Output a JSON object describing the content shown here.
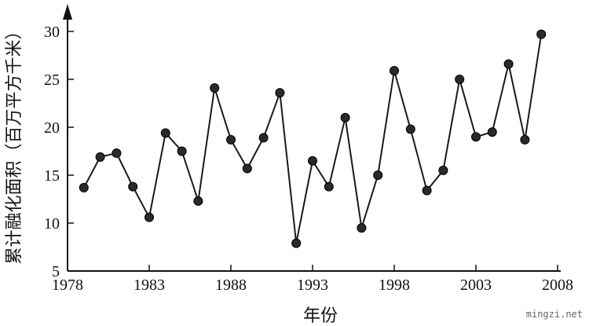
{
  "watermark": "mingzi.net",
  "chart_data": {
    "type": "line",
    "title": "",
    "xlabel": "年份",
    "ylabel": "累计融化面积（百万平方千米）",
    "x": [
      1979,
      1980,
      1981,
      1982,
      1983,
      1984,
      1985,
      1986,
      1987,
      1988,
      1989,
      1990,
      1991,
      1992,
      1993,
      1994,
      1995,
      1996,
      1997,
      1998,
      1999,
      2000,
      2001,
      2002,
      2003,
      2004,
      2005,
      2006,
      2007
    ],
    "series": [
      {
        "values": [
          13.7,
          16.9,
          17.3,
          13.8,
          10.6,
          19.4,
          17.5,
          12.3,
          24.1,
          18.7,
          15.7,
          18.9,
          23.6,
          7.9,
          16.5,
          13.8,
          21.0,
          9.5,
          15.0,
          25.9,
          19.8,
          13.4,
          15.5,
          25.0,
          19.0,
          19.5,
          26.6,
          18.7,
          29.7
        ]
      }
    ],
    "xlim": [
      1978,
      2008
    ],
    "ylim": [
      5,
      30
    ],
    "x_ticks": [
      "1978",
      "1983",
      "1988",
      "1993",
      "1998",
      "2003",
      "2008"
    ],
    "y_ticks": [
      "5",
      "10",
      "15",
      "20",
      "25",
      "30"
    ],
    "grid": false,
    "legend": "none",
    "colors": {
      "line": "#1a1a1a",
      "marker": "#2a2a2a",
      "axis": "#111111"
    }
  }
}
